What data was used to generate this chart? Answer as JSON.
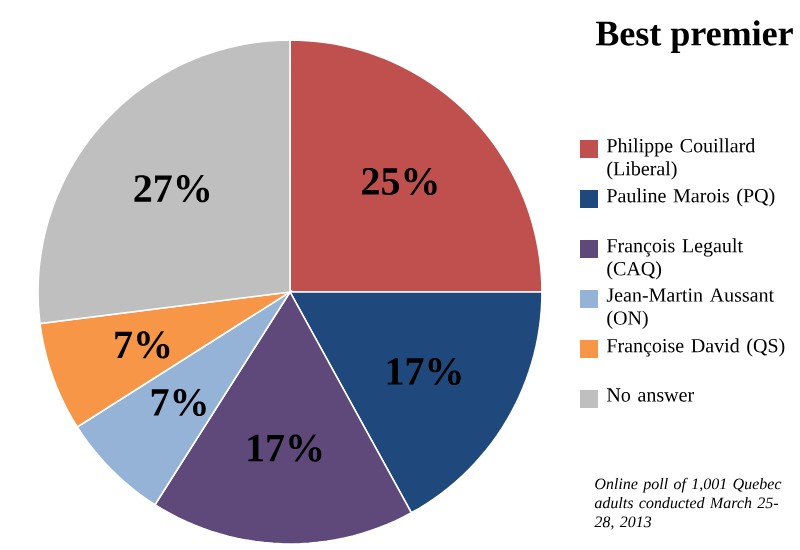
{
  "chart_data": {
    "type": "pie",
    "title": "Best premier",
    "categories": [
      "Philippe Couillard (Liberal)",
      "Pauline Marois (PQ)",
      "François Legault (CAQ)",
      "Jean-Martin Aussant (ON)",
      "Françoise David (QS)",
      "No answer"
    ],
    "values": [
      25,
      17,
      17,
      7,
      7,
      27
    ],
    "value_labels": [
      "25%",
      "17%",
      "17%",
      "7%",
      "7%",
      "27%"
    ],
    "colors": [
      "#c0504d",
      "#1f497d",
      "#5f497a",
      "#95b3d7",
      "#f79646",
      "#bfbfbf"
    ],
    "legend": "right",
    "annotations": [
      "Online poll of 1,001 Quebec adults conducted March 25-28, 2013"
    ]
  }
}
